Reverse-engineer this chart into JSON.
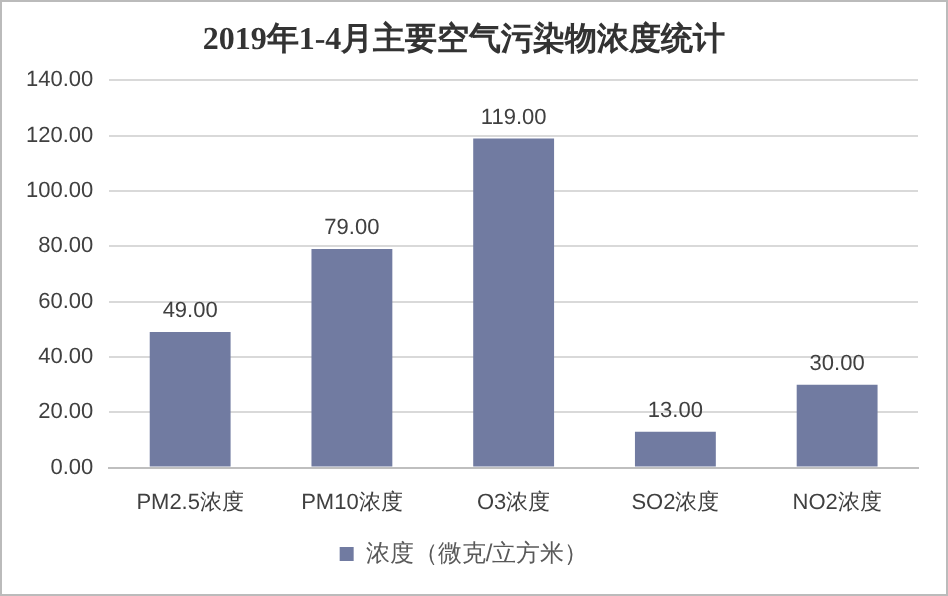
{
  "chart_data": {
    "type": "bar",
    "title": "2019年1-4月主要空气污染物浓度统计",
    "categories": [
      "PM2.5浓度",
      "PM10浓度",
      "O3浓度",
      "SO2浓度",
      "NO2浓度"
    ],
    "series": [
      {
        "name": "浓度（微克/立方米）",
        "color": "#717ba1",
        "values": [
          49,
          79,
          119,
          13,
          30
        ],
        "value_labels": [
          "49.00",
          "79.00",
          "119.00",
          "13.00",
          "30.00"
        ]
      }
    ],
    "ylim": [
      0,
      140
    ],
    "yticks": [
      {
        "value": 0,
        "label": "0.00"
      },
      {
        "value": 20,
        "label": "20.00"
      },
      {
        "value": 40,
        "label": "40.00"
      },
      {
        "value": 60,
        "label": "60.00"
      },
      {
        "value": 80,
        "label": "80.00"
      },
      {
        "value": 100,
        "label": "100.00"
      },
      {
        "value": 120,
        "label": "120.00"
      },
      {
        "value": 140,
        "label": "140.00"
      }
    ],
    "grid": "y",
    "legend": "bottom"
  }
}
